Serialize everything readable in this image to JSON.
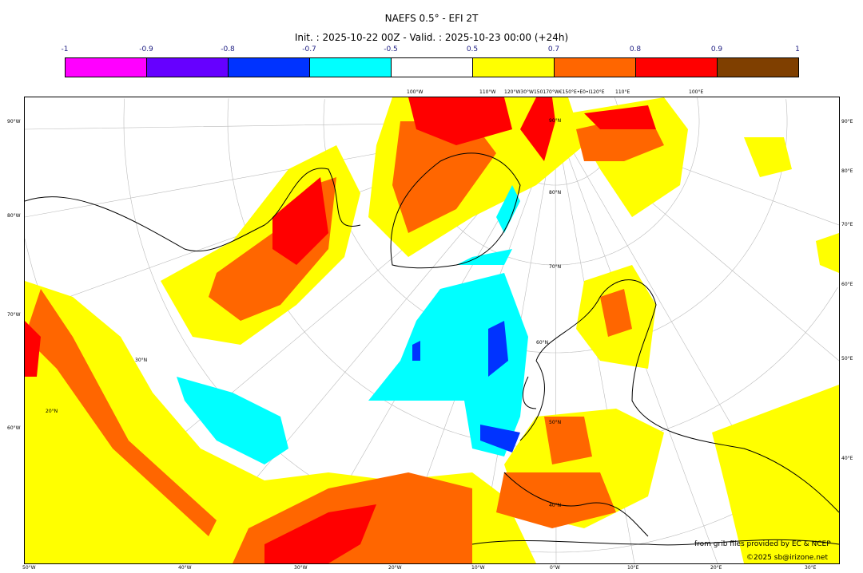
{
  "header": {
    "title": "NAEFS 0.5° - EFI 2T",
    "subtitle": "Init. : 2025-10-22 00Z - Valid. : 2025-10-23 00:00 (+24h)"
  },
  "colorbar": {
    "labels": [
      "-1",
      "-0.9",
      "-0.8",
      "-0.7",
      "-0.5",
      "0.5",
      "0.7",
      "0.8",
      "0.9",
      "1"
    ],
    "colors": [
      "#ff00ff",
      "#6600ff",
      "#0033ff",
      "#00ffff",
      "#ffffff",
      "#ffff00",
      "#ff6600",
      "#ff0000",
      "#7f3f00"
    ]
  },
  "axes": {
    "left": [
      "90°W",
      "80°W",
      "70°W",
      "60°W"
    ],
    "right": [
      "90°E",
      "80°E",
      "70°E",
      "60°E",
      "50°E",
      "40°E"
    ],
    "bottom": [
      "50°W",
      "40°W",
      "30°W",
      "20°W",
      "10°W",
      "0°W",
      "10°E",
      "20°E",
      "30°E"
    ],
    "top": [
      "100°W",
      "110°W",
      "120°W30°W150170°W€150°E•E0•I120°E",
      "110°E",
      "100°E"
    ],
    "lat_labels": [
      "90°N",
      "80°N",
      "70°N",
      "60°N",
      "50°N",
      "40°N",
      "30°N",
      "20°N"
    ]
  },
  "credits": {
    "source": "from grib files provided by EC & NCEP",
    "copyright": "©2025 sb@irizone.net"
  }
}
